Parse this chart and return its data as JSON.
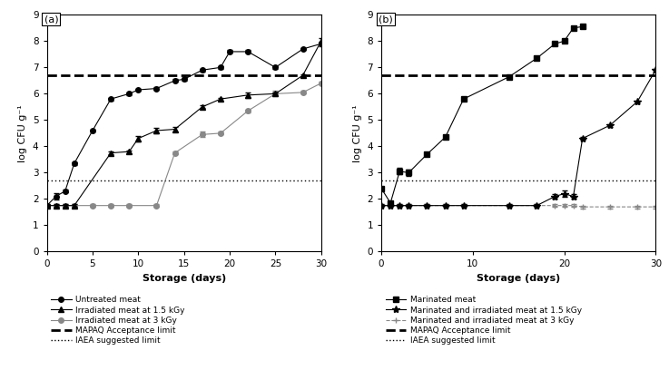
{
  "panel_a": {
    "untreated": {
      "x": [
        0,
        1,
        2,
        3,
        5,
        7,
        9,
        10,
        12,
        14,
        15,
        17,
        19,
        20,
        22,
        25,
        28,
        30
      ],
      "y": [
        1.75,
        2.1,
        2.3,
        3.35,
        4.6,
        5.8,
        6.0,
        6.15,
        6.2,
        6.5,
        6.55,
        6.9,
        7.0,
        7.6,
        7.6,
        7.0,
        7.7,
        7.9
      ],
      "yerr": [
        0.05,
        0.12,
        0.05,
        0.05,
        0.05,
        0.05,
        0.05,
        0.05,
        0.05,
        0.05,
        0.05,
        0.05,
        0.05,
        0.05,
        0.05,
        0.05,
        0.05,
        0.08
      ]
    },
    "irr15": {
      "x": [
        0,
        1,
        2,
        3,
        7,
        9,
        10,
        12,
        14,
        17,
        19,
        22,
        25,
        28,
        30
      ],
      "y": [
        1.75,
        1.75,
        1.75,
        1.75,
        3.75,
        3.8,
        4.3,
        4.6,
        4.65,
        5.5,
        5.8,
        5.95,
        6.0,
        6.7,
        8.0
      ],
      "yerr": [
        0.05,
        0.05,
        0.05,
        0.05,
        0.05,
        0.05,
        0.1,
        0.1,
        0.1,
        0.05,
        0.05,
        0.1,
        0.05,
        0.05,
        0.1
      ]
    },
    "irr3": {
      "x": [
        0,
        1,
        2,
        3,
        5,
        7,
        9,
        12,
        14,
        17,
        19,
        22,
        25,
        28,
        30
      ],
      "y": [
        1.75,
        1.75,
        1.75,
        1.75,
        1.75,
        1.75,
        1.75,
        1.75,
        3.75,
        4.45,
        4.5,
        5.35,
        6.0,
        6.05,
        6.4
      ],
      "yerr": [
        0.05,
        0.05,
        0.05,
        0.05,
        0.05,
        0.05,
        0.05,
        0.05,
        0.05,
        0.1,
        0.05,
        0.05,
        0.1,
        0.05,
        0.05
      ]
    },
    "mapaq": 6.7,
    "iaea": 2.7,
    "xlim": [
      0,
      30
    ],
    "ylim": [
      0,
      9
    ],
    "xticks": [
      0,
      5,
      10,
      15,
      20,
      25,
      30
    ],
    "yticks": [
      0,
      1,
      2,
      3,
      4,
      5,
      6,
      7,
      8,
      9
    ]
  },
  "panel_b": {
    "marinated": {
      "x": [
        0,
        1,
        2,
        3,
        5,
        7,
        9,
        14,
        17,
        19,
        20,
        21,
        22
      ],
      "y": [
        2.4,
        1.85,
        3.05,
        3.0,
        3.7,
        4.35,
        5.8,
        6.65,
        7.35,
        7.9,
        8.0,
        8.5,
        8.55
      ],
      "yerr": [
        0.05,
        0.05,
        0.12,
        0.12,
        0.05,
        0.05,
        0.05,
        0.05,
        0.05,
        0.05,
        0.05,
        0.05,
        0.05
      ]
    },
    "marirr15": {
      "x": [
        0,
        1,
        2,
        3,
        5,
        7,
        9,
        14,
        17,
        19,
        20,
        21,
        22,
        25,
        28,
        30
      ],
      "y": [
        1.75,
        1.75,
        1.75,
        1.75,
        1.75,
        1.75,
        1.75,
        1.75,
        1.75,
        2.1,
        2.2,
        2.1,
        4.3,
        4.8,
        5.7,
        6.9
      ],
      "yerr": [
        0.05,
        0.05,
        0.05,
        0.05,
        0.05,
        0.05,
        0.05,
        0.05,
        0.05,
        0.08,
        0.12,
        0.08,
        0.05,
        0.05,
        0.05,
        0.05
      ]
    },
    "marirr3": {
      "x": [
        0,
        1,
        2,
        3,
        5,
        7,
        9,
        14,
        17,
        19,
        20,
        21,
        22,
        25,
        28,
        30
      ],
      "y": [
        1.75,
        1.75,
        1.75,
        1.75,
        1.75,
        1.75,
        1.75,
        1.75,
        1.75,
        1.75,
        1.75,
        1.75,
        1.7,
        1.7,
        1.7,
        1.7
      ],
      "yerr": [
        0.05,
        0.05,
        0.05,
        0.05,
        0.05,
        0.05,
        0.05,
        0.05,
        0.05,
        0.05,
        0.05,
        0.05,
        0.05,
        0.05,
        0.05,
        0.05
      ]
    },
    "mapaq": 6.7,
    "iaea": 2.7,
    "xlim": [
      0,
      30
    ],
    "ylim": [
      0,
      9
    ],
    "xticks": [
      0,
      10,
      20,
      30
    ],
    "yticks": [
      0,
      1,
      2,
      3,
      4,
      5,
      6,
      7,
      8,
      9
    ]
  },
  "color_dark": "#000000",
  "color_mid": "#555555",
  "color_light": "#888888",
  "linewidth": 0.8,
  "markersize": 4,
  "capsize": 2,
  "elinewidth": 0.7
}
